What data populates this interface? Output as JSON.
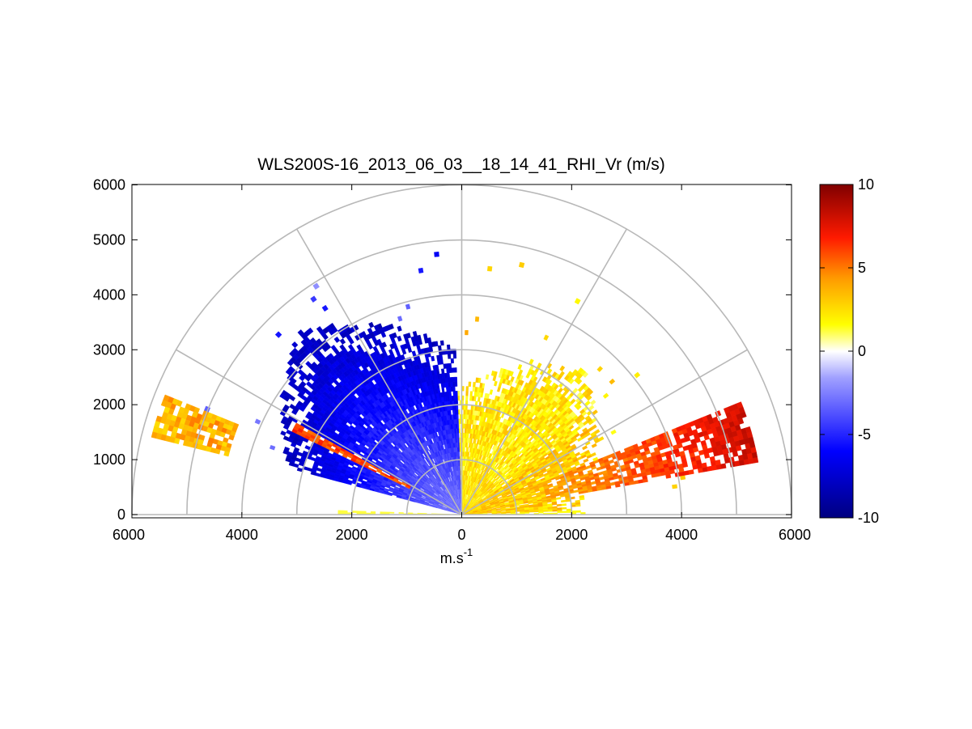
{
  "chart_data": {
    "type": "heatmap",
    "subtype": "polar-rhi-sector",
    "title": "WLS200S-16_2013_06_03__18_14_41_RHI_Vr (m/s)",
    "xlabel_base": "m.s",
    "xlabel_exp": "-1",
    "xlim": [
      -6000,
      6000
    ],
    "ylim": [
      0,
      6000
    ],
    "x_ticks": [
      -6000,
      -4000,
      -2000,
      0,
      2000,
      4000,
      6000
    ],
    "x_tick_labels": [
      "6000",
      "4000",
      "2000",
      "0",
      "2000",
      "4000",
      "6000"
    ],
    "y_ticks": [
      0,
      1000,
      2000,
      3000,
      4000,
      5000,
      6000
    ],
    "y_tick_labels": [
      "0",
      "1000",
      "2000",
      "3000",
      "4000",
      "5000",
      "6000"
    ],
    "polar_grid": {
      "ring_radii": [
        1000,
        2000,
        3000,
        4000,
        5000,
        6000
      ],
      "spoke_angles_deg": [
        0,
        30,
        60,
        90,
        120,
        150,
        180
      ]
    },
    "colorbar": {
      "range": [
        -10,
        10
      ],
      "ticks": [
        -10,
        -5,
        0,
        5,
        10
      ],
      "tick_labels": [
        "-10",
        "-5",
        "0",
        "5",
        "10"
      ],
      "colormap": "blue-white-yellow-red"
    },
    "regions": [
      {
        "name": "negative velocity sector",
        "azimuth_deg": [
          95,
          165
        ],
        "range_m": [
          0,
          4500
        ],
        "velocity_ms": [
          -8,
          -1
        ]
      },
      {
        "name": "positive velocity sector",
        "azimuth_deg": [
          8,
          90
        ],
        "range_m": [
          0,
          3500
        ],
        "velocity_ms": [
          1,
          4
        ]
      },
      {
        "name": "positive velocity layer",
        "azimuth_deg": [
          10,
          22
        ],
        "range_m": [
          1500,
          5500
        ],
        "velocity_ms": [
          3,
          8
        ]
      },
      {
        "name": "positive velocity layer (upper left)",
        "azimuth_deg": [
          158,
          166
        ],
        "range_m": [
          4300,
          5800
        ],
        "velocity_ms": [
          2,
          5
        ]
      }
    ]
  }
}
